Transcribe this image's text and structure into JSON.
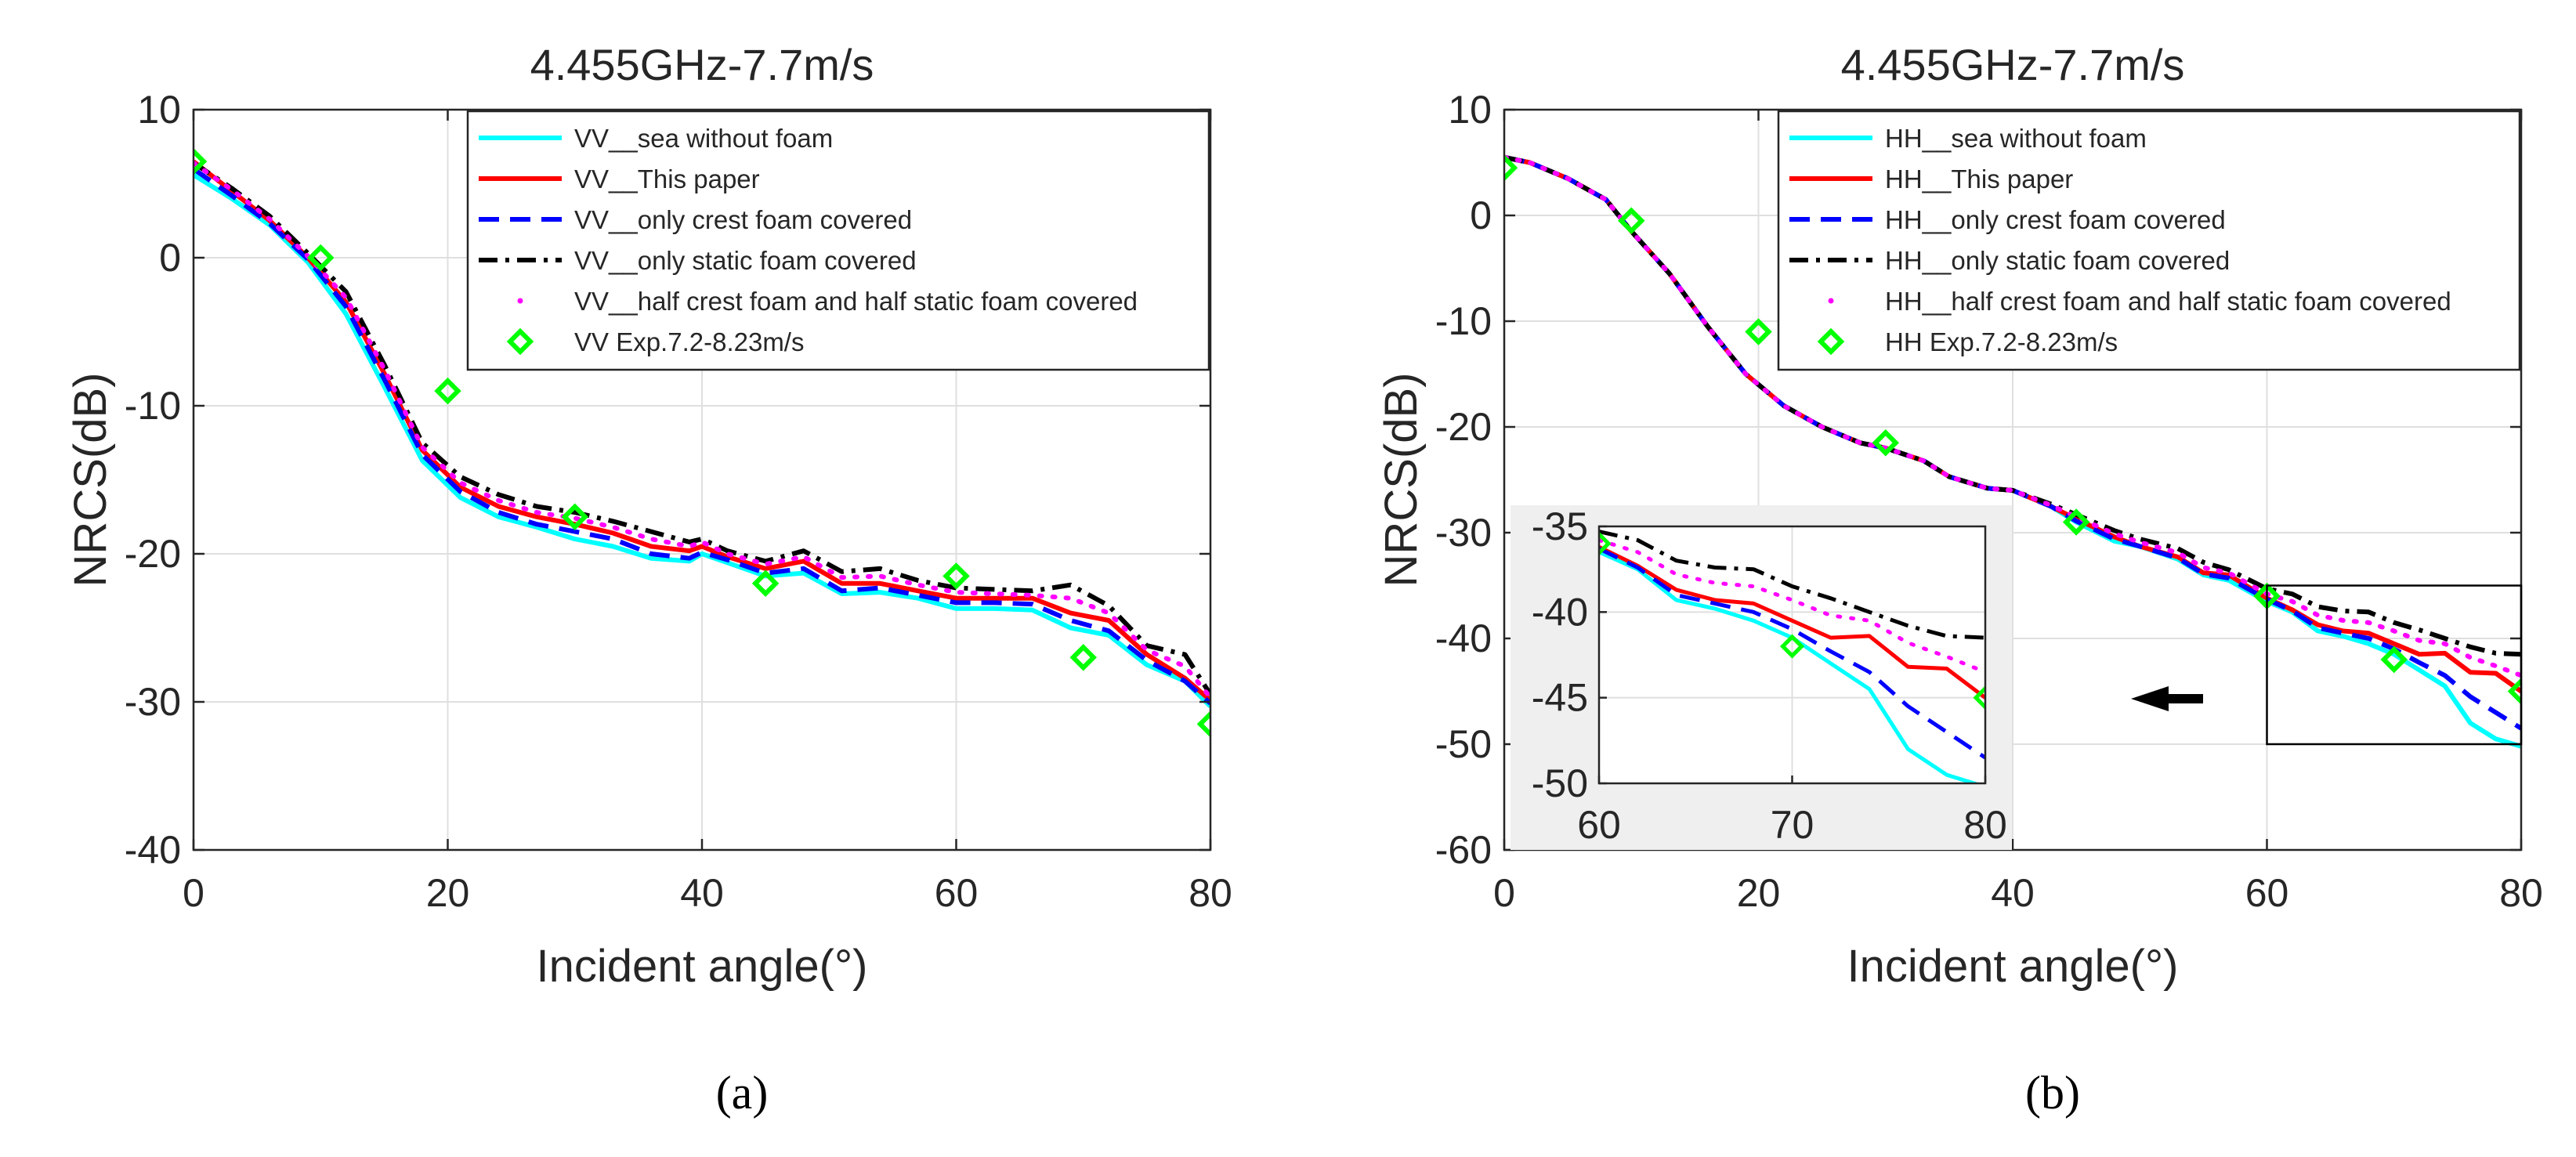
{
  "captions": [
    "(a)",
    "(b)"
  ],
  "chart_data": [
    {
      "type": "line",
      "title": "4.455GHz-7.7m/s",
      "xlabel": "Incident angle(°)",
      "ylabel": "NRCS(dB)",
      "xlim": [
        0,
        80
      ],
      "ylim": [
        -40,
        10
      ],
      "xticks": [
        0,
        20,
        40,
        60,
        80
      ],
      "yticks": [
        10,
        0,
        -10,
        -20,
        -30,
        -40
      ],
      "grid": true,
      "legend_position": "top-right",
      "series": [
        {
          "name": "VV__sea without foam",
          "style": "solid",
          "color": "#00ffff",
          "x": [
            0,
            3,
            6,
            9,
            12,
            15,
            18,
            21,
            24,
            27,
            30,
            33,
            36,
            39,
            40,
            42,
            45,
            48,
            51,
            54,
            57,
            60,
            63,
            66,
            69,
            72,
            75,
            78,
            80
          ],
          "y": [
            5.6,
            4,
            2.2,
            -0.3,
            -3.8,
            -8.7,
            -13.7,
            -16.2,
            -17.5,
            -18.2,
            -19,
            -19.5,
            -20.3,
            -20.5,
            -20,
            -20.6,
            -21.5,
            -21.3,
            -22.7,
            -22.6,
            -23,
            -23.7,
            -23.7,
            -23.8,
            -25,
            -25.5,
            -27.5,
            -28.6,
            -30.3
          ]
        },
        {
          "name": "VV__This paper",
          "style": "solid",
          "color": "#ff0000",
          "x": [
            0,
            3,
            6,
            9,
            12,
            15,
            18,
            21,
            24,
            27,
            30,
            33,
            36,
            39,
            40,
            42,
            45,
            48,
            51,
            54,
            57,
            60,
            63,
            66,
            69,
            72,
            75,
            78,
            80
          ],
          "y": [
            6.5,
            4.5,
            2.5,
            0,
            -3,
            -7.8,
            -13,
            -15.5,
            -16.8,
            -17.5,
            -18,
            -18.6,
            -19.5,
            -19.8,
            -19.5,
            -20.2,
            -21,
            -20.5,
            -22,
            -22,
            -22.5,
            -23,
            -23,
            -23,
            -24,
            -24.5,
            -26.8,
            -28.4,
            -29.9
          ]
        },
        {
          "name": "VV__only crest foam covered",
          "style": "dashed",
          "color": "#0000ff",
          "x": [
            0,
            3,
            6,
            9,
            12,
            15,
            18,
            21,
            24,
            27,
            30,
            33,
            36,
            39,
            40,
            42,
            45,
            48,
            51,
            54,
            57,
            60,
            63,
            66,
            69,
            72,
            75,
            78,
            80
          ],
          "y": [
            6,
            4.2,
            2.3,
            -0.1,
            -3.3,
            -8.2,
            -13.3,
            -15.8,
            -17.2,
            -18,
            -18.5,
            -19,
            -20,
            -20.3,
            -19.9,
            -20.4,
            -21.3,
            -21,
            -22.5,
            -22.3,
            -22.8,
            -23.3,
            -23.3,
            -23.4,
            -24.5,
            -25.2,
            -27.2,
            -28.6,
            -30.1
          ]
        },
        {
          "name": "VV__only static foam covered",
          "style": "dashdot",
          "color": "#000000",
          "x": [
            0,
            3,
            6,
            9,
            12,
            15,
            18,
            21,
            24,
            27,
            30,
            33,
            36,
            39,
            40,
            42,
            45,
            48,
            51,
            54,
            57,
            60,
            63,
            66,
            69,
            72,
            75,
            78,
            80
          ],
          "y": [
            6.4,
            4.7,
            2.8,
            0.3,
            -2.3,
            -7.2,
            -12.5,
            -14.8,
            -16,
            -16.8,
            -17.2,
            -17.8,
            -18.5,
            -19.2,
            -19,
            -19.8,
            -20.5,
            -19.8,
            -21.2,
            -21,
            -21.8,
            -22.3,
            -22.4,
            -22.5,
            -22.1,
            -23.5,
            -26.2,
            -26.8,
            -29.5
          ]
        },
        {
          "name": "VV__half crest foam and half static foam covered",
          "style": "dotted",
          "color": "#ff00ff",
          "x": [
            0,
            3,
            6,
            9,
            12,
            15,
            18,
            21,
            24,
            27,
            30,
            33,
            36,
            39,
            40,
            42,
            45,
            48,
            51,
            54,
            57,
            60,
            63,
            66,
            69,
            72,
            75,
            78,
            80
          ],
          "y": [
            6.4,
            4.6,
            2.6,
            0.1,
            -2.7,
            -7.5,
            -12.8,
            -15.2,
            -16.4,
            -17.2,
            -17.6,
            -18.2,
            -19,
            -19.5,
            -19.2,
            -20,
            -20.7,
            -20.2,
            -21.6,
            -21.5,
            -22.1,
            -22.6,
            -22.7,
            -22.8,
            -23,
            -24,
            -26.5,
            -27.6,
            -29.7
          ]
        },
        {
          "name": "VV Exp.7.2-8.23m/s",
          "style": "marker",
          "color": "#00ff00",
          "x": [
            0,
            10,
            20,
            30,
            45,
            60,
            70,
            80
          ],
          "y": [
            6.5,
            0,
            -9,
            -17.5,
            -22,
            -21.5,
            -27,
            -31.5
          ]
        }
      ]
    },
    {
      "type": "line",
      "title": "4.455GHz-7.7m/s",
      "xlabel": "Incident angle(°)",
      "ylabel": "NRCS(dB)",
      "xlim": [
        0,
        80
      ],
      "ylim": [
        -60,
        10
      ],
      "xticks": [
        0,
        20,
        40,
        60,
        80
      ],
      "yticks": [
        10,
        0,
        -10,
        -20,
        -30,
        -40,
        -50,
        -60
      ],
      "grid": true,
      "legend_position": "top-right",
      "series": [
        {
          "name": "HH__sea without foam",
          "style": "solid",
          "color": "#00ffff",
          "x": [
            0,
            2,
            5,
            8,
            10,
            13,
            16,
            19,
            22,
            25,
            28,
            30,
            33,
            35,
            38,
            40,
            43,
            45,
            48,
            50,
            53,
            55,
            57,
            60,
            62,
            64,
            66,
            68,
            70,
            72,
            74,
            76,
            78,
            80
          ],
          "y": [
            5.5,
            5,
            3.5,
            1.5,
            -1.5,
            -5.5,
            -10.5,
            -15,
            -18,
            -20,
            -21.5,
            -22,
            -23.2,
            -24.7,
            -25.8,
            -26,
            -27.5,
            -29,
            -30.8,
            -31.3,
            -32.5,
            -34,
            -34.5,
            -36.5,
            -37.5,
            -39.3,
            -39.8,
            -40.5,
            -41.5,
            -43,
            -44.5,
            -48,
            -49.5,
            -50.2
          ]
        },
        {
          "name": "HH__This paper",
          "style": "solid",
          "color": "#ff0000",
          "x": [
            0,
            2,
            5,
            8,
            10,
            13,
            16,
            19,
            22,
            25,
            28,
            30,
            33,
            35,
            38,
            40,
            43,
            45,
            48,
            50,
            53,
            55,
            57,
            60,
            62,
            64,
            66,
            68,
            70,
            72,
            74,
            76,
            78,
            80
          ],
          "y": [
            5.5,
            5,
            3.5,
            1.5,
            -1.5,
            -5.5,
            -10.5,
            -15,
            -18,
            -20,
            -21.5,
            -22,
            -23.2,
            -24.7,
            -25.8,
            -26,
            -27.5,
            -28.7,
            -30.4,
            -31.3,
            -32.3,
            -33.8,
            -34,
            -36.2,
            -37.3,
            -38.7,
            -39.3,
            -39.5,
            -40.5,
            -41.5,
            -41.4,
            -43.2,
            -43.3,
            -45
          ]
        },
        {
          "name": "HH__only crest foam covered",
          "style": "dashed",
          "color": "#0000ff",
          "x": [
            0,
            2,
            5,
            8,
            10,
            13,
            16,
            19,
            22,
            25,
            28,
            30,
            33,
            35,
            38,
            40,
            43,
            45,
            48,
            50,
            53,
            55,
            57,
            60,
            62,
            64,
            66,
            68,
            70,
            72,
            74,
            76,
            78,
            80
          ],
          "y": [
            5.5,
            5,
            3.5,
            1.5,
            -1.5,
            -5.5,
            -10.5,
            -15,
            -18,
            -20,
            -21.5,
            -22,
            -23.2,
            -24.7,
            -25.8,
            -26,
            -27.5,
            -28.9,
            -30.6,
            -31.3,
            -32.4,
            -33.9,
            -34.3,
            -36.3,
            -37.4,
            -39,
            -39.5,
            -40,
            -41,
            -42.3,
            -43.5,
            -45.5,
            -47,
            -48.5
          ]
        },
        {
          "name": "HH__only static foam covered",
          "style": "dashdot",
          "color": "#000000",
          "x": [
            0,
            2,
            5,
            8,
            10,
            13,
            16,
            19,
            22,
            25,
            28,
            30,
            33,
            35,
            38,
            40,
            43,
            45,
            48,
            50,
            53,
            55,
            57,
            60,
            62,
            64,
            66,
            68,
            70,
            72,
            74,
            76,
            78,
            80
          ],
          "y": [
            5.5,
            5,
            3.5,
            1.5,
            -1.5,
            -5.5,
            -10.5,
            -15,
            -18,
            -20,
            -21.5,
            -22,
            -23.2,
            -24.7,
            -25.8,
            -26,
            -27.3,
            -28.3,
            -29.8,
            -30.6,
            -31.5,
            -32.8,
            -33.5,
            -35.3,
            -35.8,
            -37,
            -37.4,
            -37.5,
            -38.5,
            -39.2,
            -40,
            -40.8,
            -41.4,
            -41.5
          ]
        },
        {
          "name": "HH__half crest foam and half static foam covered",
          "style": "dotted",
          "color": "#ff00ff",
          "x": [
            0,
            2,
            5,
            8,
            10,
            13,
            16,
            19,
            22,
            25,
            28,
            30,
            33,
            35,
            38,
            40,
            43,
            45,
            48,
            50,
            53,
            55,
            57,
            60,
            62,
            64,
            66,
            68,
            70,
            72,
            74,
            76,
            78,
            80
          ],
          "y": [
            5.5,
            5,
            3.5,
            1.5,
            -1.5,
            -5.5,
            -10.5,
            -15,
            -18,
            -20,
            -21.5,
            -22,
            -23.2,
            -24.7,
            -25.8,
            -26,
            -27.4,
            -28.5,
            -30.1,
            -30.9,
            -31.9,
            -33.3,
            -33.8,
            -35.8,
            -36.5,
            -37.8,
            -38.3,
            -38.5,
            -39.3,
            -40.2,
            -40.5,
            -41.8,
            -42.6,
            -43.5
          ]
        },
        {
          "name": "HH Exp.7.2-8.23m/s",
          "style": "marker",
          "color": "#00ff00",
          "x": [
            0,
            10,
            20,
            30,
            45,
            60,
            70,
            80
          ],
          "y": [
            4.5,
            -0.5,
            -11,
            -21.5,
            -29,
            -36,
            -42,
            -45
          ]
        }
      ],
      "inset": {
        "xlim": [
          60,
          80
        ],
        "ylim": [
          -50,
          -35
        ],
        "xticks": [
          60,
          70,
          80
        ],
        "yticks": [
          -35,
          -40,
          -45,
          -50
        ]
      }
    }
  ]
}
